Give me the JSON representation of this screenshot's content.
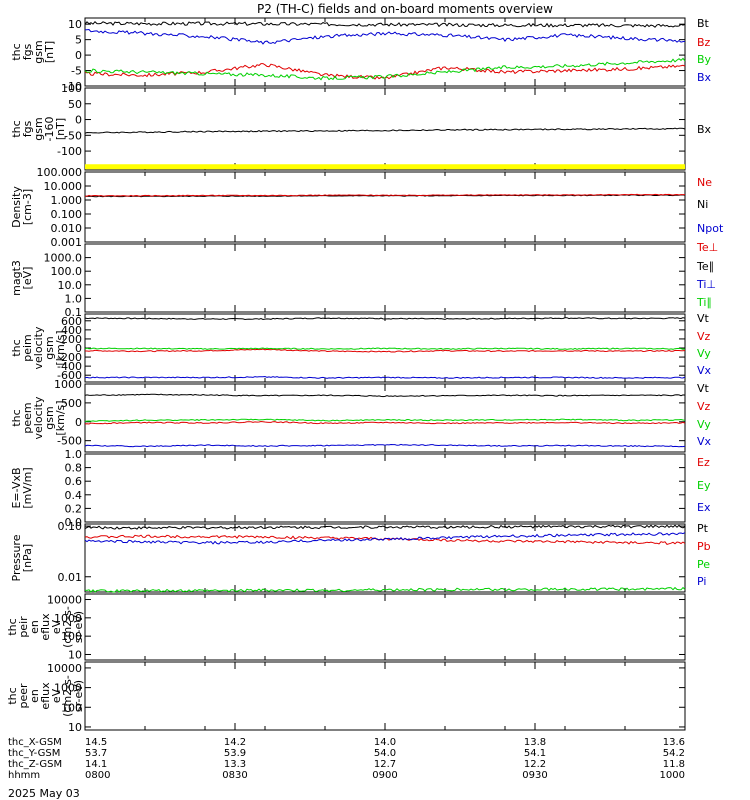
{
  "title": "P2 (TH-C) fields and on-board moments overview",
  "date_label": "2025 May 03",
  "colors": {
    "black": "#000000",
    "red": "#e00000",
    "green": "#00d000",
    "blue": "#0000d0",
    "yellow": "#ffff00"
  },
  "chart_data": [
    {
      "type": "line",
      "ylabel": [
        "thc",
        "fgs",
        "gsm",
        "[nT]"
      ],
      "ylim": [
        -10,
        12
      ],
      "scale": "linear",
      "ticks": [
        {
          "v": 10,
          "label": "10"
        },
        {
          "v": 5,
          "label": "5"
        },
        {
          "v": 0,
          "label": "0"
        },
        {
          "v": -5,
          "label": "-5"
        },
        {
          "v": -10,
          "label": "-10"
        }
      ],
      "legend": [
        {
          "name": "Bt",
          "color": "black"
        },
        {
          "name": "Bz",
          "color": "red"
        },
        {
          "name": "By",
          "color": "green"
        },
        {
          "name": "Bx",
          "color": "blue"
        }
      ],
      "series": [
        {
          "name": "Bt",
          "color": "black",
          "values": [
            10.3,
            10.2,
            10.2,
            10.1,
            10.0,
            9.9,
            9.8,
            9.7,
            9.7,
            9.6,
            9.5
          ]
        },
        {
          "name": "Bz",
          "color": "red",
          "values": [
            -6.0,
            -6.5,
            -5.5,
            -3.0,
            -6.5,
            -7.5,
            -4.0,
            -5.5,
            -5.0,
            -4.5,
            -3.5
          ]
        },
        {
          "name": "By",
          "color": "green",
          "values": [
            -5.0,
            -5.5,
            -6.0,
            -6.5,
            -7.5,
            -7.0,
            -5.5,
            -4.0,
            -3.5,
            -2.5,
            -1.5
          ]
        },
        {
          "name": "Bx",
          "color": "blue",
          "values": [
            8.0,
            7.0,
            6.0,
            4.0,
            6.0,
            7.0,
            6.5,
            5.0,
            6.5,
            5.5,
            4.5
          ]
        }
      ]
    },
    {
      "type": "line",
      "ylabel": [
        "thc",
        "fgs",
        "gsm",
        "-160",
        "[nT]"
      ],
      "ylim": [
        -160,
        100
      ],
      "scale": "linear",
      "ticks": [
        {
          "v": 100,
          "label": "100"
        },
        {
          "v": 50,
          "label": "50"
        },
        {
          "v": 0,
          "label": "0"
        },
        {
          "v": -50,
          "label": "-50"
        },
        {
          "v": -100,
          "label": "-100"
        }
      ],
      "legend": [
        {
          "name": "Bx",
          "color": "black"
        }
      ],
      "series": [
        {
          "name": "Bx",
          "color": "black",
          "values": [
            -42,
            -40,
            -38,
            -37,
            -36,
            -35,
            -33,
            -32,
            -31,
            -30,
            -29
          ]
        },
        {
          "name": "",
          "color": "yellow",
          "values": [
            -150,
            -150,
            -150,
            -150,
            -150,
            -150,
            -150,
            -150,
            -150,
            -150,
            -150
          ]
        }
      ]
    },
    {
      "type": "line",
      "ylabel": [
        "Density",
        "[cm-3]"
      ],
      "ylim": [
        0.001,
        100
      ],
      "scale": "log",
      "ticks": [
        {
          "v": 100,
          "label": "100.000"
        },
        {
          "v": 10,
          "label": "10.000"
        },
        {
          "v": 1,
          "label": "1.000"
        },
        {
          "v": 0.1,
          "label": "0.100"
        },
        {
          "v": 0.01,
          "label": "0.010"
        },
        {
          "v": 0.001,
          "label": "0.001"
        }
      ],
      "legend": [
        {
          "name": "Ne",
          "color": "red"
        },
        {
          "name": "Ni",
          "color": "black"
        },
        {
          "name": "Npot",
          "color": "blue"
        }
      ],
      "series": [
        {
          "name": "Ni",
          "color": "black",
          "values": [
            1.8,
            1.8,
            1.9,
            1.9,
            2.0,
            2.0,
            2.0,
            2.1,
            2.1,
            2.2,
            2.2
          ]
        },
        {
          "name": "Ne",
          "color": "red",
          "values": [
            2.0,
            2.0,
            2.1,
            2.1,
            2.2,
            2.2,
            2.2,
            2.3,
            2.3,
            2.4,
            2.4
          ]
        }
      ]
    },
    {
      "type": "line",
      "ylabel": [
        "magt3",
        "[eV]"
      ],
      "ylim": [
        0.1,
        10000
      ],
      "scale": "log",
      "ticks": [
        {
          "v": 1000,
          "label": "1000.0"
        },
        {
          "v": 100,
          "label": "100.0"
        },
        {
          "v": 10,
          "label": "10.0"
        },
        {
          "v": 1,
          "label": "1.0"
        },
        {
          "v": 0.1,
          "label": "0.1"
        }
      ],
      "legend": [
        {
          "name": "Te⊥",
          "color": "red"
        },
        {
          "name": "Te∥",
          "color": "black"
        },
        {
          "name": "Ti⊥",
          "color": "blue"
        },
        {
          "name": "Ti∥",
          "color": "green"
        }
      ],
      "series": []
    },
    {
      "type": "line",
      "ylabel": [
        "thc",
        "peim",
        "velocity",
        "gsm",
        "[km/s]"
      ],
      "ylim": [
        -750,
        750
      ],
      "scale": "linear",
      "ticks": [
        {
          "v": 600,
          "label": "600"
        },
        {
          "v": 400,
          "label": "400"
        },
        {
          "v": 200,
          "label": "200"
        },
        {
          "v": 0,
          "label": "0"
        },
        {
          "v": -200,
          "label": "-200"
        },
        {
          "v": -400,
          "label": "-400"
        },
        {
          "v": -600,
          "label": "-600"
        }
      ],
      "legend": [
        {
          "name": "Vt",
          "color": "black"
        },
        {
          "name": "Vz",
          "color": "red"
        },
        {
          "name": "Vy",
          "color": "green"
        },
        {
          "name": "Vx",
          "color": "blue"
        }
      ],
      "series": [
        {
          "name": "Vt",
          "color": "black",
          "values": [
            660,
            650,
            640,
            640,
            660,
            650,
            640,
            650,
            660,
            650,
            660
          ]
        },
        {
          "name": "Vz",
          "color": "red",
          "values": [
            -60,
            -70,
            -60,
            -30,
            -70,
            -80,
            -60,
            -70,
            -60,
            -70,
            -60
          ]
        },
        {
          "name": "Vy",
          "color": "green",
          "values": [
            -10,
            -10,
            -20,
            -10,
            -20,
            -10,
            -20,
            -10,
            -20,
            -10,
            -20
          ]
        },
        {
          "name": "Vx",
          "color": "blue",
          "values": [
            -650,
            -650,
            -650,
            -640,
            -660,
            -650,
            -660,
            -650,
            -650,
            -660,
            -650
          ]
        }
      ]
    },
    {
      "type": "line",
      "ylabel": [
        "thc",
        "peem",
        "velocity",
        "gsm",
        "[km/s]"
      ],
      "ylim": [
        -800,
        1000
      ],
      "scale": "linear",
      "ticks": [
        {
          "v": 1000,
          "label": "1000"
        },
        {
          "v": 500,
          "label": "500"
        },
        {
          "v": 0,
          "label": "0"
        },
        {
          "v": -500,
          "label": "-500"
        }
      ],
      "legend": [
        {
          "name": "Vt",
          "color": "black"
        },
        {
          "name": "Vz",
          "color": "red"
        },
        {
          "name": "Vy",
          "color": "green"
        },
        {
          "name": "Vx",
          "color": "blue"
        }
      ],
      "series": [
        {
          "name": "Vt",
          "color": "black",
          "values": [
            700,
            720,
            710,
            690,
            700,
            680,
            690,
            700,
            690,
            700,
            700
          ]
        },
        {
          "name": "Vz",
          "color": "red",
          "values": [
            -50,
            -20,
            -30,
            0,
            -40,
            -20,
            -40,
            -30,
            -20,
            -40,
            -30
          ]
        },
        {
          "name": "Vy",
          "color": "green",
          "values": [
            20,
            40,
            50,
            60,
            30,
            50,
            40,
            50,
            60,
            40,
            50
          ]
        },
        {
          "name": "Vx",
          "color": "blue",
          "values": [
            -630,
            -650,
            -620,
            -640,
            -630,
            -610,
            -620,
            -640,
            -630,
            -640,
            -650
          ]
        }
      ]
    },
    {
      "type": "line",
      "ylabel": [
        "E=-VxB",
        "[mV/m]"
      ],
      "ylim": [
        0,
        1.0
      ],
      "scale": "linear",
      "ticks": [
        {
          "v": 1.0,
          "label": "1.0"
        },
        {
          "v": 0.8,
          "label": "0.8"
        },
        {
          "v": 0.6,
          "label": "0.6"
        },
        {
          "v": 0.4,
          "label": "0.4"
        },
        {
          "v": 0.2,
          "label": "0.2"
        },
        {
          "v": 0.0,
          "label": "0.0"
        }
      ],
      "legend": [
        {
          "name": "Ez",
          "color": "red"
        },
        {
          "name": "Ey",
          "color": "green"
        },
        {
          "name": "Ex",
          "color": "blue"
        }
      ],
      "series": []
    },
    {
      "type": "line",
      "ylabel": [
        "Pressure",
        "[nPa]"
      ],
      "ylim": [
        0.005,
        0.11
      ],
      "scale": "log",
      "ticks": [
        {
          "v": 0.1,
          "label": "0.10"
        },
        {
          "v": 0.01,
          "label": "0.01"
        }
      ],
      "legend": [
        {
          "name": "Pt",
          "color": "black"
        },
        {
          "name": "Pb",
          "color": "red"
        },
        {
          "name": "Pe",
          "color": "green"
        },
        {
          "name": "Pi",
          "color": "blue"
        }
      ],
      "series": [
        {
          "name": "Pt",
          "color": "black",
          "values": [
            0.094,
            0.092,
            0.093,
            0.095,
            0.095,
            0.096,
            0.095,
            0.097,
            0.097,
            0.098,
            0.098
          ]
        },
        {
          "name": "Pb",
          "color": "red",
          "values": [
            0.061,
            0.063,
            0.062,
            0.061,
            0.058,
            0.056,
            0.053,
            0.05,
            0.049,
            0.047,
            0.046
          ]
        },
        {
          "name": "Pe",
          "color": "green",
          "values": [
            0.0052,
            0.0053,
            0.0053,
            0.0054,
            0.0054,
            0.0055,
            0.0056,
            0.0056,
            0.0057,
            0.0057,
            0.0058
          ]
        },
        {
          "name": "Pi",
          "color": "blue",
          "values": [
            0.051,
            0.049,
            0.047,
            0.048,
            0.053,
            0.055,
            0.059,
            0.063,
            0.066,
            0.069,
            0.071
          ]
        }
      ]
    },
    {
      "type": "heatmap",
      "ylabel": [
        "thc",
        "peir",
        "en",
        "eflux",
        "eV",
        "(cm2-s-",
        "sr-eV)"
      ],
      "ylim": [
        5,
        20000
      ],
      "scale": "log",
      "ticks": [
        {
          "v": 10000,
          "label": "10000"
        },
        {
          "v": 1000,
          "label": "1000"
        },
        {
          "v": 100,
          "label": "100"
        },
        {
          "v": 10,
          "label": "10"
        }
      ],
      "legend": [],
      "series": []
    },
    {
      "type": "heatmap",
      "ylabel": [
        "thc",
        "peer",
        "en",
        "eflux",
        "eV",
        "(cm2-s-",
        "sr-eV)"
      ],
      "ylim": [
        7,
        20000
      ],
      "scale": "log",
      "ticks": [
        {
          "v": 10000,
          "label": "10000"
        },
        {
          "v": 1000,
          "label": "1000"
        },
        {
          "v": 100,
          "label": "100"
        },
        {
          "v": 10,
          "label": "10"
        }
      ],
      "legend": [],
      "series": []
    }
  ],
  "time_axis": {
    "ticks": [
      "0800",
      "0830",
      "0900",
      "0930",
      "1000"
    ],
    "rows": [
      {
        "name": "thc_X-GSM",
        "values": [
          "14.5",
          "14.2",
          "14.0",
          "13.8",
          "13.6"
        ]
      },
      {
        "name": "thc_Y-GSM",
        "values": [
          "53.7",
          "53.9",
          "54.0",
          "54.1",
          "54.2"
        ]
      },
      {
        "name": "thc_Z-GSM",
        "values": [
          "14.1",
          "13.3",
          "12.7",
          "12.2",
          "11.8"
        ]
      },
      {
        "name": "hhmm",
        "values": [
          "0800",
          "0830",
          "0900",
          "0930",
          "1000"
        ]
      }
    ]
  }
}
